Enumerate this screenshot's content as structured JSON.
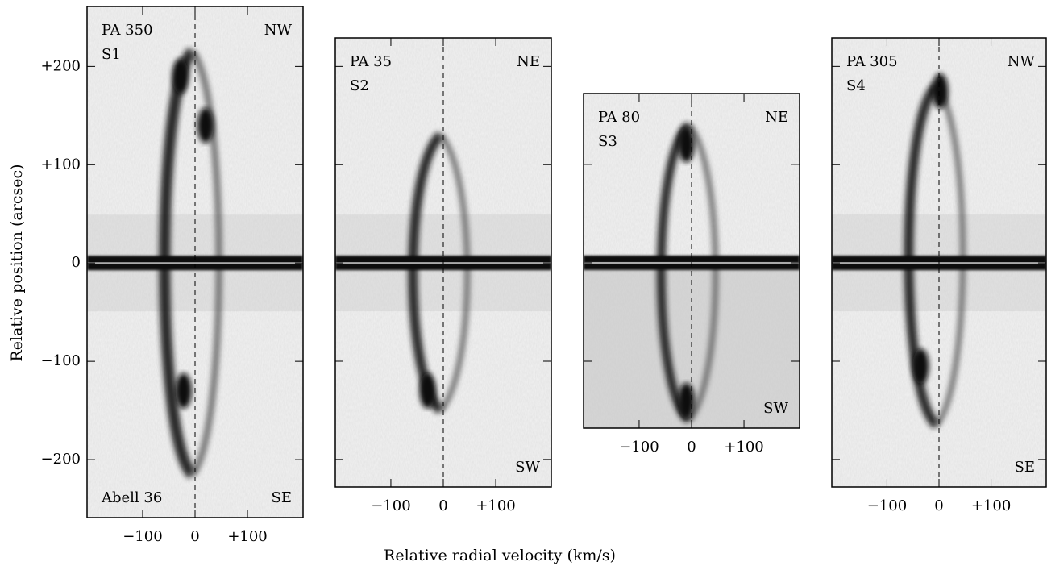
{
  "figure": {
    "xlabel": "Relative radial velocity (km/s)",
    "ylabel": "Relative position (arcsec)"
  },
  "chart_data": [
    {
      "type": "pv-diagram",
      "title": "PA 350",
      "subtitle": "S1",
      "corner_labels": [
        "NW",
        "SE"
      ],
      "object": "Abell 36",
      "xlim": [
        -206,
        206
      ],
      "ylim": [
        -259,
        261
      ],
      "xticks": [
        {
          "value": -100,
          "label": "−100"
        },
        0,
        {
          "value": 100,
          "label": "+100"
        }
      ],
      "yticks": [
        {
          "value": -200,
          "label": "−200"
        },
        {
          "value": -100,
          "label": "−100"
        },
        0,
        {
          "value": 100,
          "label": "+100"
        },
        {
          "value": 200,
          "label": "+200"
        }
      ],
      "ytick_labels": true
    },
    {
      "type": "pv-diagram",
      "title": "PA 35",
      "subtitle": "S2",
      "corner_labels": [
        "NE",
        "SW"
      ],
      "xlim": [
        -206,
        206
      ],
      "ylim": [
        -228,
        229
      ],
      "xticks": [
        {
          "value": -100,
          "label": "−100"
        },
        0,
        {
          "value": 100,
          "label": "+100"
        }
      ],
      "yticks": [
        -200,
        -100,
        0,
        100,
        200
      ],
      "ytick_labels": false
    },
    {
      "type": "pv-diagram",
      "title": "PA 80",
      "subtitle": "S3",
      "corner_labels": [
        "NE",
        "SW"
      ],
      "xlim": [
        -206,
        206
      ],
      "ylim": [
        -168,
        172
      ],
      "xticks": [
        {
          "value": -100,
          "label": "−100"
        },
        0,
        {
          "value": 100,
          "label": "+100"
        }
      ],
      "yticks": [
        -100,
        0,
        100
      ],
      "ytick_labels": false
    },
    {
      "type": "pv-diagram",
      "title": "PA 305",
      "subtitle": "S4",
      "corner_labels": [
        "NW",
        "SE"
      ],
      "xlim": [
        -206,
        206
      ],
      "ylim": [
        -228,
        229
      ],
      "xticks": [
        {
          "value": -100,
          "label": "−100"
        },
        0,
        {
          "value": 100,
          "label": "+100"
        }
      ],
      "yticks": [
        -200,
        -100,
        0,
        100,
        200
      ],
      "ytick_labels": false
    }
  ]
}
